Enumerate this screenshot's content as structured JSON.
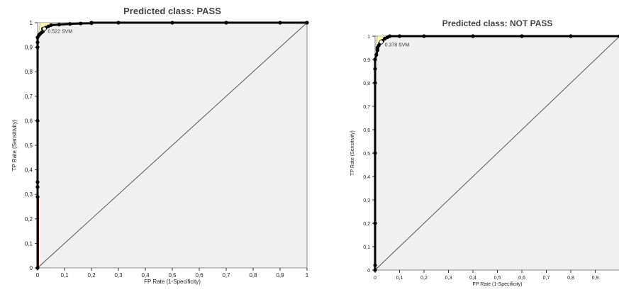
{
  "colors": {
    "plot_bg": "#f0f0f0",
    "curve": "#000000",
    "marker": "#000000",
    "low_segment": "#e00000",
    "hull_fill": "#fff8b0",
    "diagonal": "#555555"
  },
  "chart_data": [
    {
      "type": "line",
      "title": "Predicted class: PASS",
      "xlabel": "FP Rate (1-Specificity)",
      "ylabel": "TP Rate (Sensitivity)",
      "xlim": [
        0,
        1
      ],
      "ylim": [
        0,
        1
      ],
      "xticks": [
        "0",
        "0,1",
        "0,2",
        "0,3",
        "0,4",
        "0,5",
        "0,6",
        "0,7",
        "0,8",
        "0,9",
        "1"
      ],
      "yticks": [
        "0",
        "0,1",
        "0,2",
        "0,3",
        "0,4",
        "0,5",
        "0,6",
        "0,7",
        "0,8",
        "0,9",
        "1"
      ],
      "annotation": "0.522 SVM",
      "series": [
        {
          "name": "SVM",
          "x": [
            0,
            0,
            0,
            0,
            0,
            0,
            0,
            0,
            0.005,
            0.01,
            0.015,
            0.02,
            0.02,
            0.03,
            0.04,
            0.05,
            0.08,
            0.12,
            0.16,
            0.2,
            0.2,
            0.3,
            0.5,
            0.7,
            0.9,
            1.0
          ],
          "y": [
            0,
            0.29,
            0.33,
            0.35,
            0.6,
            0.9,
            0.92,
            0.94,
            0.95,
            0.955,
            0.96,
            0.965,
            0.975,
            0.98,
            0.985,
            0.99,
            0.992,
            0.995,
            0.997,
            0.998,
            1.0,
            1.0,
            1.0,
            1.0,
            1.0,
            1.0
          ]
        }
      ],
      "diagonal": true,
      "grid": false
    },
    {
      "type": "line",
      "title": "Predicted class: NOT PASS",
      "xlabel": "FP Rate (1-Specificity)",
      "ylabel": "TP Rate (Sensitivity)",
      "xlim": [
        0,
        1
      ],
      "ylim": [
        0,
        1
      ],
      "xticks": [
        "0",
        "0,1",
        "0,2",
        "0,3",
        "0,4",
        "0,5",
        "0,6",
        "0,7",
        "0,8",
        "0,9"
      ],
      "yticks": [
        "0",
        "0,1",
        "0,2",
        "0,3",
        "0,4",
        "0,5",
        "0,6",
        "0,7",
        "0,8",
        "0,9",
        "1"
      ],
      "annotation": "0.378 SVM",
      "series": [
        {
          "name": "SVM",
          "x": [
            0,
            0,
            0,
            0,
            0,
            0,
            0,
            0.005,
            0.01,
            0.01,
            0.015,
            0.02,
            0.03,
            0.04,
            0.05,
            0.06,
            0.1,
            0.2,
            0.4,
            0.6,
            0.8,
            1.0
          ],
          "y": [
            0,
            0.02,
            0.2,
            0.5,
            0.8,
            0.86,
            0.9,
            0.92,
            0.94,
            0.95,
            0.96,
            0.97,
            0.98,
            0.99,
            0.995,
            1.0,
            1.0,
            1.0,
            1.0,
            1.0,
            1.0,
            1.0
          ]
        }
      ],
      "diagonal": true,
      "grid": false
    }
  ]
}
